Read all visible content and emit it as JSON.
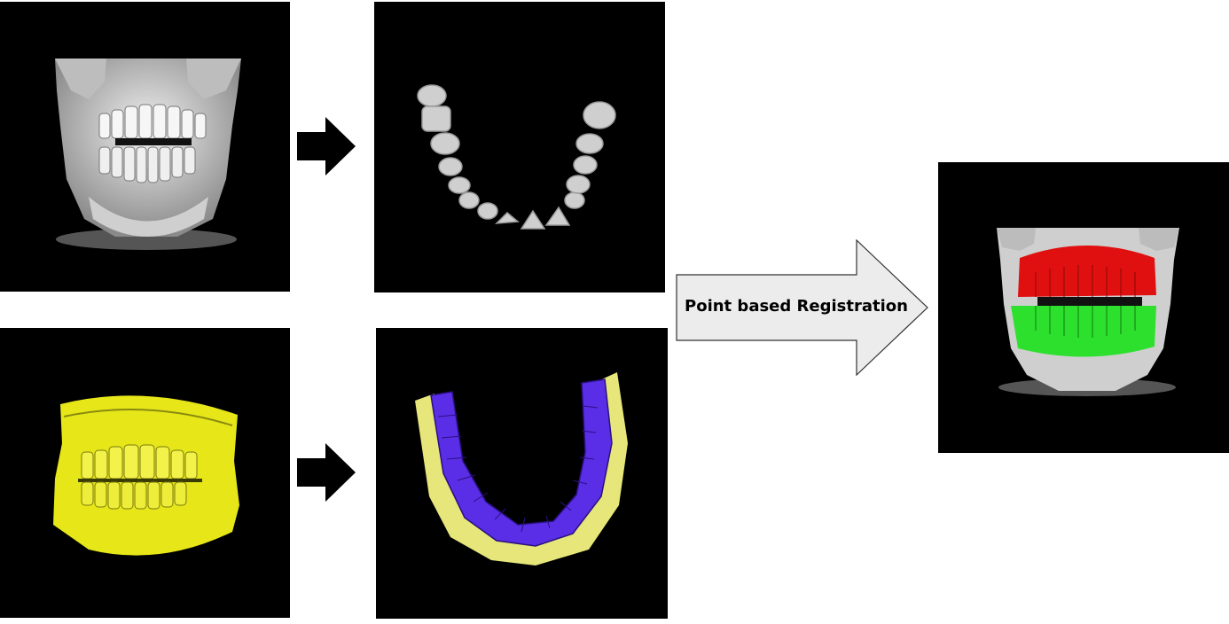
{
  "diagram": {
    "registration_label": "Point based Registration",
    "panels": [
      {
        "id": "ct-skull",
        "icon": "ct-skull-volume-icon"
      },
      {
        "id": "ct-teeth-arch",
        "icon": "ct-segmented-teeth-icon"
      },
      {
        "id": "scan-dentition",
        "icon": "yellow-dental-scan-icon"
      },
      {
        "id": "scan-arch",
        "icon": "purple-teeth-on-yellow-arch-icon"
      },
      {
        "id": "registered-result",
        "icon": "registered-skull-red-green-icon"
      }
    ],
    "colors": {
      "background": "#000000",
      "bone": "#d8d8d8",
      "scan_yellow": "#e6e619",
      "scan_purple": "#5a2ee6",
      "result_red": "#e01010",
      "result_green": "#2ee02e",
      "arrow_fill": "#ececec"
    }
  }
}
